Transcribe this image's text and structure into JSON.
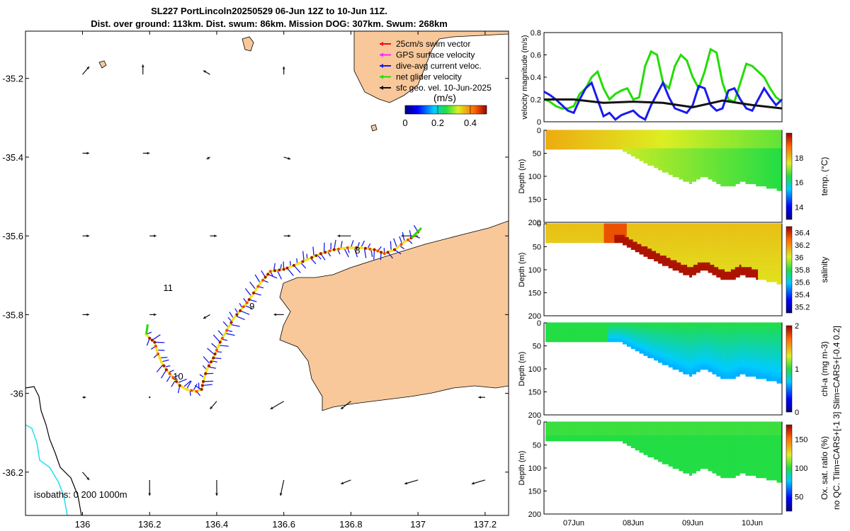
{
  "header": {
    "title_line1": "SL227 PortLincoln20250529 06-Jun 12Z to 10-Jun 11Z.",
    "title_line2": "Dist. over ground: 113km. Dist. swum: 86km. Mission DOG: 307km. Swum: 268km"
  },
  "colors": {
    "land": "#f8c89a",
    "green": "#22dd00",
    "blue": "#1a1aee",
    "black": "#111111",
    "cyan": "#22ddee"
  },
  "chart_data": [
    {
      "type": "map",
      "xlim": [
        135.83,
        137.27
      ],
      "ylim": [
        -36.31,
        -35.08
      ],
      "xticks": [
        136,
        136.2,
        136.4,
        136.6,
        136.8,
        137,
        137.2
      ],
      "xtick_labels": [
        "136",
        "136.2",
        "136.4",
        "136.6",
        "136.8",
        "137",
        "137.2"
      ],
      "yticks": [
        -35.2,
        -35.4,
        -35.6,
        -35.8,
        -36,
        -36.2
      ],
      "ytick_labels": [
        "-35.2",
        "-35.4",
        "-35.6",
        "-35.8",
        "-36",
        "-36.2"
      ],
      "legend": [
        {
          "label": "25cm/s swim vector",
          "color": "#ee1111"
        },
        {
          "label": "GPS surface velocity",
          "color": "#ff22ff"
        },
        {
          "label": "dive-avg current veloc.",
          "color": "#1a1aee"
        },
        {
          "label": "net glider velocity",
          "color": "#22dd00"
        },
        {
          "label": "sfc geo. vel. 10-Jun-2025",
          "color": "#111111"
        }
      ],
      "colorbar": {
        "label": "(m/s)",
        "ticks": [
          "0",
          "0.2",
          "0.4"
        ],
        "range": [
          0,
          0.5
        ]
      },
      "day_labels": [
        {
          "text": "8",
          "lon": 136.82,
          "lat": -35.645
        },
        {
          "text": "9",
          "lon": 136.505,
          "lat": -35.787
        },
        {
          "text": "10",
          "lon": 136.285,
          "lat": -35.965
        },
        {
          "text": "11",
          "lon": 136.255,
          "lat": -35.74
        }
      ],
      "isobath_label": "isobaths: 0   200  1000m",
      "track": [
        [
          136.19,
          -35.85
        ],
        [
          136.2,
          -35.86
        ],
        [
          136.215,
          -35.87
        ],
        [
          136.225,
          -35.9
        ],
        [
          136.235,
          -35.92
        ],
        [
          136.25,
          -35.94
        ],
        [
          136.27,
          -35.96
        ],
        [
          136.29,
          -35.98
        ],
        [
          136.31,
          -35.99
        ],
        [
          136.34,
          -35.995
        ],
        [
          136.355,
          -35.99
        ],
        [
          136.36,
          -35.97
        ],
        [
          136.37,
          -35.94
        ],
        [
          136.39,
          -35.91
        ],
        [
          136.41,
          -35.87
        ],
        [
          136.43,
          -35.84
        ],
        [
          136.45,
          -35.81
        ],
        [
          136.47,
          -35.79
        ],
        [
          136.49,
          -35.77
        ],
        [
          136.51,
          -35.745
        ],
        [
          136.53,
          -35.72
        ],
        [
          136.56,
          -35.69
        ],
        [
          136.6,
          -35.685
        ],
        [
          136.63,
          -35.675
        ],
        [
          136.67,
          -35.66
        ],
        [
          136.71,
          -35.645
        ],
        [
          136.75,
          -35.635
        ],
        [
          136.79,
          -35.63
        ],
        [
          136.83,
          -35.63
        ],
        [
          136.87,
          -35.635
        ],
        [
          136.9,
          -35.645
        ],
        [
          136.93,
          -35.635
        ],
        [
          136.96,
          -35.615
        ],
        [
          136.99,
          -35.6
        ],
        [
          137.0,
          -35.59
        ],
        [
          137.01,
          -35.58
        ]
      ],
      "sfc_arrows": [
        [
          136.0,
          -35.19,
          0.02,
          0.02
        ],
        [
          136.18,
          -35.19,
          0.0,
          0.025
        ],
        [
          136.38,
          -35.19,
          -0.02,
          0.01
        ],
        [
          136.6,
          -35.19,
          0.0,
          0.02
        ],
        [
          136.0,
          -35.39,
          0.02,
          0.0
        ],
        [
          136.18,
          -35.39,
          0.02,
          0.0
        ],
        [
          136.38,
          -35.4,
          -0.01,
          -0.005
        ],
        [
          136.6,
          -35.4,
          0.02,
          -0.005
        ],
        [
          136.0,
          -35.6,
          0.02,
          0.0
        ],
        [
          136.2,
          -35.6,
          0.02,
          0.0
        ],
        [
          136.38,
          -35.6,
          0.02,
          0.0
        ],
        [
          136.6,
          -35.6,
          0.02,
          0.0
        ],
        [
          136.8,
          -35.6,
          -0.04,
          0.0
        ],
        [
          137.0,
          -35.6,
          -0.05,
          0.0
        ],
        [
          136.0,
          -35.8,
          0.02,
          0.0
        ],
        [
          136.2,
          -35.8,
          0.02,
          0.0
        ],
        [
          136.38,
          -35.8,
          -0.02,
          -0.01
        ],
        [
          136.6,
          -35.8,
          -0.03,
          0.0
        ],
        [
          136.0,
          -36.01,
          0.01,
          0.0
        ],
        [
          136.2,
          -36.01,
          0.0,
          0.0
        ],
        [
          136.4,
          -36.02,
          -0.02,
          -0.02
        ],
        [
          136.6,
          -36.02,
          -0.04,
          -0.02
        ],
        [
          136.8,
          -36.02,
          -0.03,
          -0.02
        ],
        [
          137.2,
          -36.01,
          -0.02,
          0.0
        ],
        [
          136.2,
          -36.22,
          0.0,
          -0.04
        ],
        [
          136.4,
          -36.22,
          0.0,
          -0.04
        ],
        [
          136.6,
          -36.22,
          -0.01,
          -0.04
        ],
        [
          136.8,
          -36.22,
          -0.03,
          -0.01
        ],
        [
          137.0,
          -36.22,
          -0.04,
          -0.01
        ],
        [
          137.2,
          -36.22,
          -0.04,
          -0.01
        ],
        [
          136.0,
          -36.2,
          0.02,
          -0.02
        ]
      ]
    },
    {
      "type": "line",
      "ylabel": "velocity magnitude (m/s)",
      "xlim": [
        6.5,
        10.5
      ],
      "ylim": [
        0,
        0.8
      ],
      "yticks": [
        0,
        0.2,
        0.4,
        0.6,
        0.8
      ],
      "ytick_labels": [
        "0",
        "0.2",
        "0.4",
        "0.6",
        "0.8"
      ],
      "series": [
        {
          "name": "net glider velocity",
          "color": "#22dd00",
          "x": [
            6.5,
            6.6,
            6.7,
            6.8,
            6.9,
            7.0,
            7.1,
            7.2,
            7.3,
            7.4,
            7.5,
            7.6,
            7.7,
            7.8,
            7.9,
            8.0,
            8.1,
            8.2,
            8.3,
            8.4,
            8.5,
            8.6,
            8.7,
            8.8,
            8.9,
            9.0,
            9.1,
            9.2,
            9.3,
            9.4,
            9.5,
            9.6,
            9.7,
            9.8,
            9.9,
            10.0,
            10.1,
            10.2,
            10.3,
            10.4,
            10.5
          ],
          "values": [
            0.2,
            0.18,
            0.14,
            0.12,
            0.12,
            0.14,
            0.25,
            0.3,
            0.4,
            0.45,
            0.3,
            0.2,
            0.25,
            0.28,
            0.3,
            0.2,
            0.22,
            0.5,
            0.63,
            0.6,
            0.35,
            0.3,
            0.5,
            0.6,
            0.55,
            0.4,
            0.3,
            0.45,
            0.65,
            0.62,
            0.35,
            0.2,
            0.18,
            0.35,
            0.52,
            0.5,
            0.45,
            0.4,
            0.3,
            0.22,
            0.18
          ]
        },
        {
          "name": "dive-avg current veloc.",
          "color": "#1a1aee",
          "x": [
            6.5,
            6.6,
            6.7,
            6.8,
            6.9,
            7.0,
            7.1,
            7.2,
            7.3,
            7.4,
            7.5,
            7.6,
            7.7,
            7.8,
            7.9,
            8.0,
            8.1,
            8.2,
            8.3,
            8.4,
            8.5,
            8.6,
            8.7,
            8.8,
            8.9,
            9.0,
            9.1,
            9.2,
            9.3,
            9.4,
            9.5,
            9.6,
            9.7,
            9.8,
            9.9,
            10.0,
            10.1,
            10.2,
            10.3,
            10.4,
            10.5
          ],
          "values": [
            0.27,
            0.24,
            0.2,
            0.15,
            0.1,
            0.08,
            0.2,
            0.3,
            0.35,
            0.2,
            0.05,
            0.08,
            0.02,
            0.06,
            0.08,
            0.1,
            0.05,
            0.02,
            0.15,
            0.25,
            0.35,
            0.22,
            0.12,
            0.1,
            0.08,
            0.15,
            0.32,
            0.3,
            0.15,
            0.1,
            0.12,
            0.28,
            0.3,
            0.2,
            0.12,
            0.1,
            0.2,
            0.3,
            0.22,
            0.15,
            0.2
          ]
        },
        {
          "name": "sfc geo. vel.",
          "color": "#111111",
          "x": [
            6.5,
            7.0,
            7.5,
            8.0,
            8.5,
            9.0,
            9.5,
            10.0,
            10.5
          ],
          "values": [
            0.2,
            0.2,
            0.17,
            0.18,
            0.17,
            0.13,
            0.19,
            0.15,
            0.12
          ]
        }
      ]
    },
    {
      "type": "scatter",
      "ylabel": "Depth (m)",
      "cbar_label": "temp. (°C)",
      "cbar_ticks": [
        "14",
        "16",
        "18"
      ],
      "cbar_range": [
        13,
        20
      ],
      "ylim": [
        200,
        0
      ],
      "yticks": [
        0,
        50,
        100,
        150,
        200
      ]
    },
    {
      "type": "scatter",
      "ylabel": "Depth (m)",
      "cbar_label": "salinity",
      "cbar_ticks": [
        "35.2",
        "35.4",
        "35.6",
        "35.8",
        "36",
        "36.2",
        "36.4"
      ],
      "cbar_range": [
        35.1,
        36.5
      ],
      "ylim": [
        200,
        0
      ],
      "yticks": [
        0,
        50,
        100,
        150,
        200
      ]
    },
    {
      "type": "scatter",
      "ylabel": "Depth (m)",
      "cbar_label": "chl-a (mg m-3)",
      "cbar_ticks": [
        "0",
        "1",
        "2"
      ],
      "cbar_range": [
        0,
        2
      ],
      "ylim": [
        200,
        0
      ],
      "yticks": [
        0,
        50,
        100,
        150,
        200
      ]
    },
    {
      "type": "scatter",
      "ylabel": "Depth (m)",
      "cbar_label": "Ox. sat. ratio (%)",
      "cbar_ticks": [
        "50",
        "100",
        "150"
      ],
      "cbar_range": [
        25,
        175
      ],
      "ylim": [
        200,
        0
      ],
      "yticks": [
        0,
        50,
        100,
        150,
        200
      ],
      "xtick_labels": [
        "07Jun",
        "08Jun",
        "09Jun",
        "10Jun"
      ],
      "xticks": [
        7,
        8,
        9,
        10
      ]
    }
  ],
  "side_note": "no QC. Tlim=CARS+[-1 3] Slim=CARS+[-0.4 0.2]"
}
